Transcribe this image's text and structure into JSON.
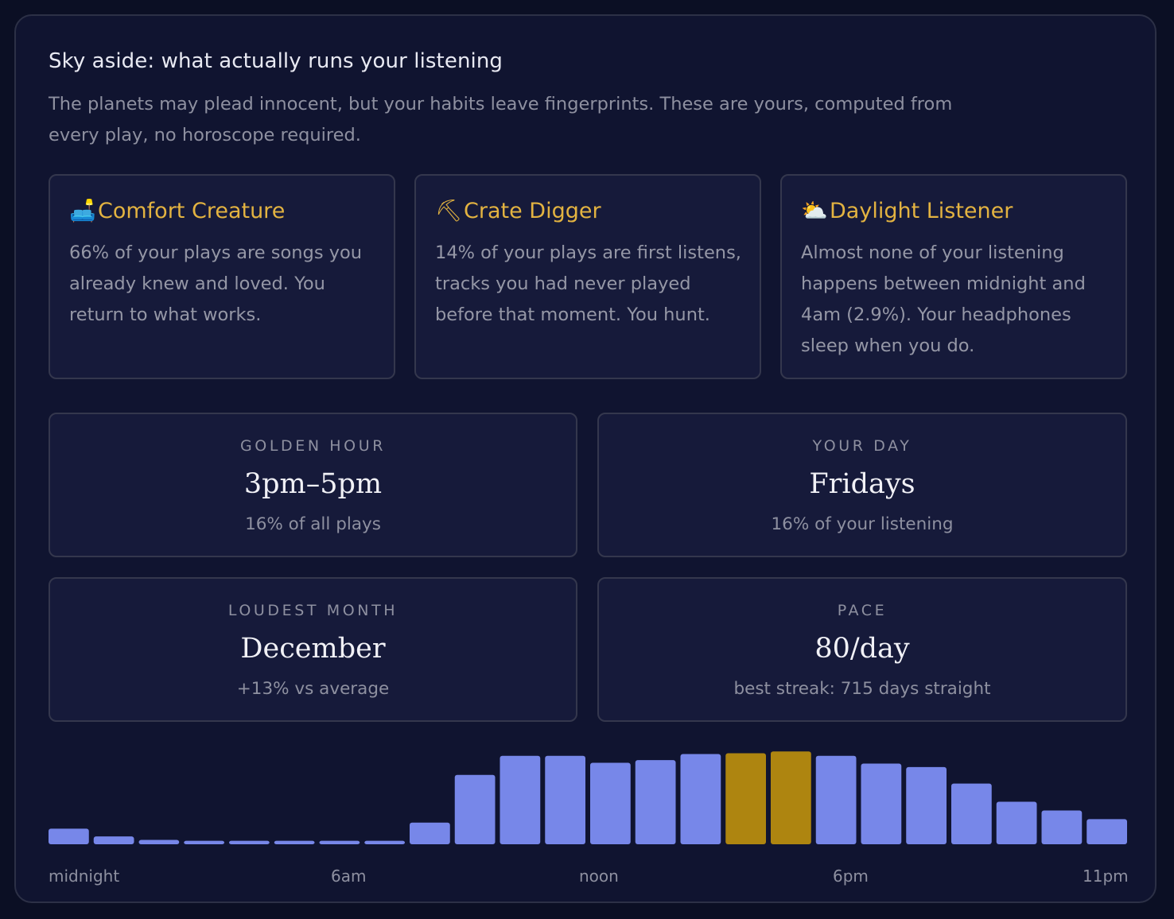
{
  "header": {
    "title": "Sky aside: what actually runs your listening",
    "subtitle": "The planets may plead innocent, but your habits leave fingerprints. These are yours, computed from every play, no horoscope required."
  },
  "traits": [
    {
      "icon": "couch-icon",
      "glyph": "🛋️",
      "title": "Comfort Creature",
      "body": "66% of your plays are songs you already knew and loved. You return to what works."
    },
    {
      "icon": "pick-icon",
      "glyph": "⛏",
      "title": "Crate Digger",
      "body": "14% of your plays are first listens, tracks you had never played before that moment. You hunt."
    },
    {
      "icon": "sun-behind-cloud-icon",
      "glyph": "⛅",
      "title": "Daylight Listener",
      "body": "Almost none of your listening happens between midnight and 4am (2.9%). Your headphones sleep when you do."
    }
  ],
  "stats": [
    {
      "label": "GOLDEN HOUR",
      "value": "3pm–5pm",
      "sub": "16% of all plays"
    },
    {
      "label": "YOUR DAY",
      "value": "Fridays",
      "sub": "16% of your listening"
    },
    {
      "label": "LOUDEST MONTH",
      "value": "December",
      "sub": "+13% vs average"
    },
    {
      "label": "PACE",
      "value": "80/day",
      "sub": "best streak: 715 days straight"
    }
  ],
  "colors": {
    "bar": "#7787e9",
    "bar_highlight": "#ae8510",
    "accent": "#e3b341"
  },
  "chart_data": {
    "type": "bar",
    "categories": [
      "0",
      "1",
      "2",
      "3",
      "4",
      "5",
      "6",
      "7",
      "8",
      "9",
      "10",
      "11",
      "12",
      "13",
      "14",
      "15",
      "16",
      "17",
      "18",
      "19",
      "20",
      "21",
      "22",
      "23"
    ],
    "values": [
      18,
      9,
      5,
      4,
      4,
      4,
      4,
      4,
      25,
      80,
      102,
      102,
      94,
      97,
      104,
      105,
      107,
      102,
      93,
      89,
      70,
      49,
      39,
      29
    ],
    "highlight": [
      15,
      16
    ],
    "ylim": [
      0,
      110
    ],
    "tick_labels": {
      "midnight": "midnight",
      "6am": "6am",
      "noon": "noon",
      "6pm": "6pm",
      "11pm": "11pm"
    },
    "title": "",
    "xlabel": "",
    "ylabel": ""
  }
}
